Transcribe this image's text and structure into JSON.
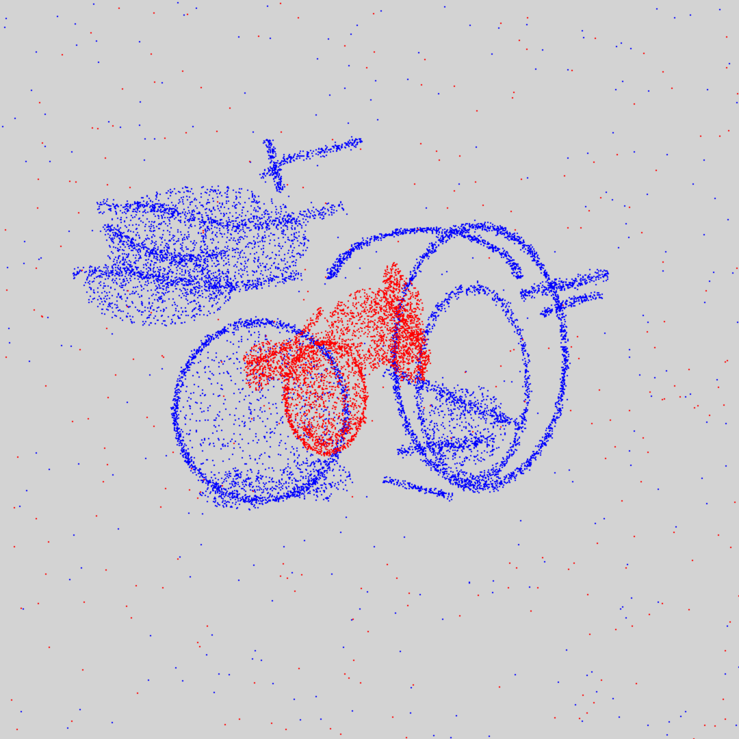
{
  "scene": {
    "background_color": "#d3d3d3",
    "clouds": [
      {
        "name": "target-dragon-cloud",
        "color": "#0000ff",
        "shape": "dragon"
      },
      {
        "name": "source-dragon-cloud",
        "color": "#ff0000",
        "shape": "dragon"
      }
    ],
    "outliers": [
      {
        "name": "blue-outlier-points",
        "color": "#0000ff"
      },
      {
        "name": "red-outlier-points",
        "color": "#ff0000"
      }
    ]
  }
}
